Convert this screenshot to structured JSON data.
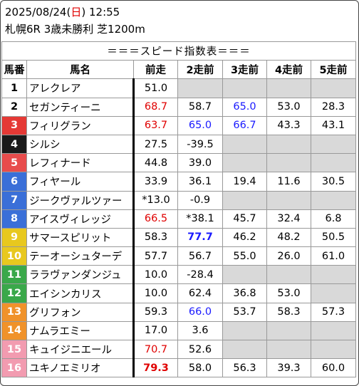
{
  "header": {
    "date": "2025/08/24",
    "dow_open": "(",
    "dow": "日",
    "dow_close": ")",
    "time": "12:55",
    "race": "札幌6R 3歳未勝利 芝1200m"
  },
  "table": {
    "banner": "＝＝＝スピード指数表＝＝＝",
    "columns": [
      "馬番",
      "馬名",
      "前走",
      "2走前",
      "3走前",
      "4走前",
      "5走前"
    ],
    "rows": [
      {
        "no": "1",
        "name": "アレクレア",
        "bg": "#ffffff",
        "fg": "#000000",
        "values": [
          {
            "t": "51.0"
          },
          null,
          null,
          null,
          null
        ]
      },
      {
        "no": "2",
        "name": "セガンティーニ",
        "bg": "#ffffff",
        "fg": "#000000",
        "values": [
          {
            "t": "68.7",
            "c": "red"
          },
          {
            "t": "58.7"
          },
          {
            "t": "65.0",
            "c": "blue"
          },
          {
            "t": "53.0"
          },
          {
            "t": "28.3"
          }
        ]
      },
      {
        "no": "3",
        "name": "フィリグラン",
        "bg": "#e53935",
        "fg": "#ffffff",
        "values": [
          {
            "t": "63.7",
            "c": "red"
          },
          {
            "t": "65.0",
            "c": "blue"
          },
          {
            "t": "66.7",
            "c": "blue"
          },
          {
            "t": "43.3"
          },
          {
            "t": "43.1"
          }
        ]
      },
      {
        "no": "4",
        "name": "シルシ",
        "bg": "#1a1a1a",
        "fg": "#ffffff",
        "values": [
          {
            "t": "27.5"
          },
          {
            "t": "-39.5"
          },
          null,
          null,
          null
        ]
      },
      {
        "no": "5",
        "name": "レフィナード",
        "bg": "#e84c4c",
        "fg": "#ffffff",
        "values": [
          {
            "t": "44.8"
          },
          {
            "t": "39.0"
          },
          null,
          null,
          null
        ]
      },
      {
        "no": "6",
        "name": "フィヤール",
        "bg": "#3a6fd8",
        "fg": "#ffffff",
        "values": [
          {
            "t": "33.9"
          },
          {
            "t": "36.1"
          },
          {
            "t": "19.4"
          },
          {
            "t": "11.6"
          },
          {
            "t": "30.5"
          }
        ]
      },
      {
        "no": "7",
        "name": "ジークヴァルツァー",
        "bg": "#3a6fd8",
        "fg": "#ffffff",
        "values": [
          {
            "t": "*13.0"
          },
          {
            "t": "-0.9"
          },
          null,
          null,
          null
        ]
      },
      {
        "no": "8",
        "name": "アイスヴィレッジ",
        "bg": "#3a6fd8",
        "fg": "#ffffff",
        "values": [
          {
            "t": "66.5",
            "c": "red"
          },
          {
            "t": "*38.1"
          },
          {
            "t": "45.7"
          },
          {
            "t": "32.4"
          },
          {
            "t": "6.8"
          }
        ]
      },
      {
        "no": "9",
        "name": "サマースピリット",
        "bg": "#e8c81e",
        "fg": "#ffffff",
        "values": [
          {
            "t": "58.3"
          },
          {
            "t": "77.7",
            "c": "blue",
            "b": true
          },
          {
            "t": "46.2"
          },
          {
            "t": "48.2"
          },
          {
            "t": "50.5"
          }
        ]
      },
      {
        "no": "10",
        "name": "テーオーシュターデ",
        "bg": "#e8c81e",
        "fg": "#ffffff",
        "values": [
          {
            "t": "57.7"
          },
          {
            "t": "56.7"
          },
          {
            "t": "55.0"
          },
          {
            "t": "26.0"
          },
          {
            "t": "61.0"
          }
        ]
      },
      {
        "no": "11",
        "name": "ララヴァンダンジュ",
        "bg": "#3aa84a",
        "fg": "#ffffff",
        "values": [
          {
            "t": "10.0"
          },
          {
            "t": "-28.4"
          },
          null,
          null,
          null
        ]
      },
      {
        "no": "12",
        "name": "エイシンカリス",
        "bg": "#3aa84a",
        "fg": "#ffffff",
        "values": [
          {
            "t": "10.0"
          },
          {
            "t": "62.4"
          },
          {
            "t": "36.8"
          },
          {
            "t": "53.0"
          },
          null
        ]
      },
      {
        "no": "13",
        "name": "グリフォン",
        "bg": "#f0922a",
        "fg": "#ffffff",
        "values": [
          {
            "t": "59.3"
          },
          {
            "t": "66.0",
            "c": "blue"
          },
          {
            "t": "53.7"
          },
          {
            "t": "58.3"
          },
          {
            "t": "57.3"
          }
        ]
      },
      {
        "no": "14",
        "name": "ナムラエミー",
        "bg": "#f0922a",
        "fg": "#ffffff",
        "values": [
          {
            "t": "17.0"
          },
          {
            "t": "3.6"
          },
          null,
          null,
          null
        ]
      },
      {
        "no": "15",
        "name": "キュイジニエール",
        "bg": "#f29bb0",
        "fg": "#ffffff",
        "values": [
          {
            "t": "70.7",
            "c": "red"
          },
          {
            "t": "52.6"
          },
          null,
          null,
          null
        ]
      },
      {
        "no": "16",
        "name": "ユキノエミリオ",
        "bg": "#f29bb0",
        "fg": "#ffffff",
        "values": [
          {
            "t": "79.3",
            "c": "red",
            "b": true
          },
          {
            "t": "58.0"
          },
          {
            "t": "56.3"
          },
          {
            "t": "39.3"
          },
          {
            "t": "60.0"
          }
        ]
      }
    ]
  }
}
